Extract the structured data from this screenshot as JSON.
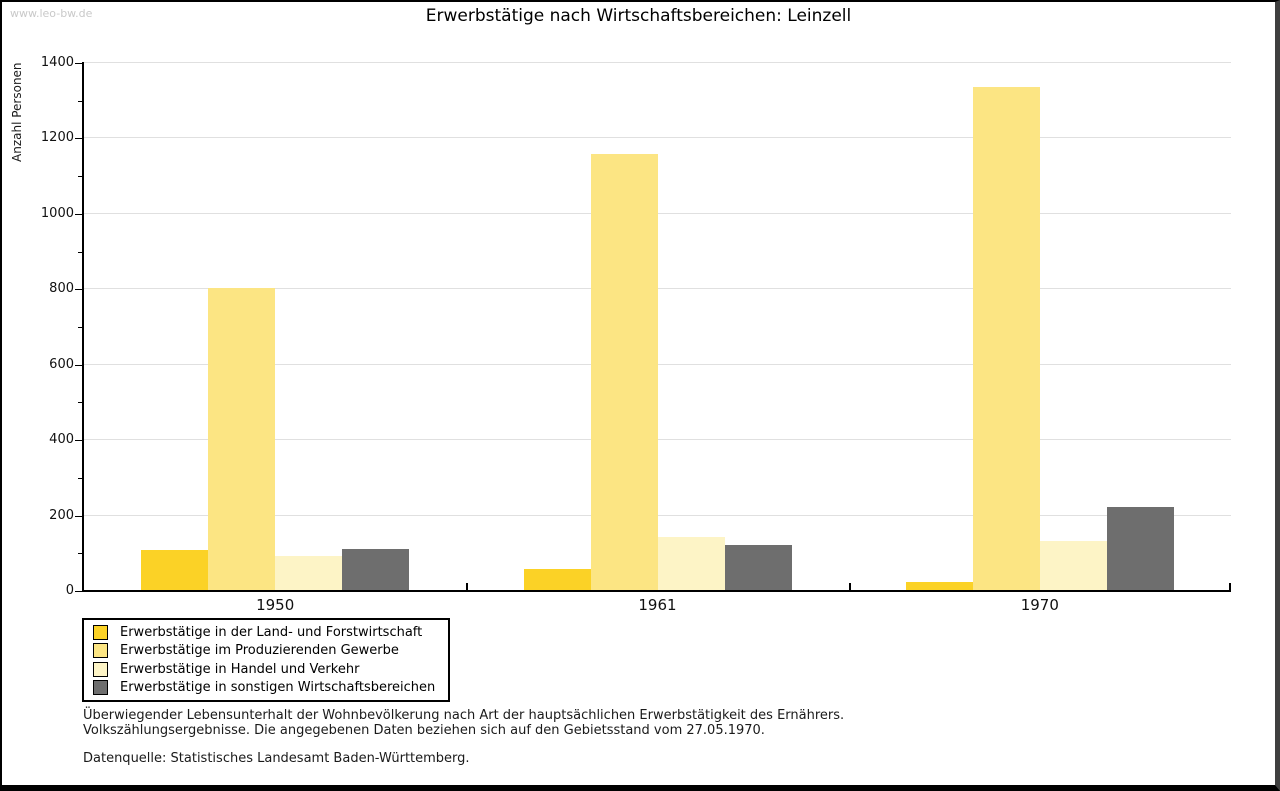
{
  "watermark": "www.leo-bw.de",
  "title": "Erwerbstätige nach Wirtschaftsbereichen: Leinzell",
  "chart_data": {
    "type": "bar",
    "title": "Erwerbstätige nach Wirtschaftsbereichen: Leinzell",
    "xlabel": "",
    "ylabel": "Anzahl Personen",
    "ylim": [
      0,
      1400
    ],
    "ytick_step": 200,
    "minor_tick_step": 100,
    "grid": true,
    "legend_position": "bottom-left",
    "categories": [
      "1950",
      "1961",
      "1970"
    ],
    "series": [
      {
        "name": "Erwerbstätige in der Land- und Forstwirtschaft",
        "color": "#FBD226",
        "values": [
          105,
          55,
          20
        ]
      },
      {
        "name": "Erwerbstätige im Produzierenden Gewerbe",
        "color": "#FCE583",
        "values": [
          800,
          1155,
          1335
        ]
      },
      {
        "name": "Erwerbstätige in Handel und Verkehr",
        "color": "#FDF4C6",
        "values": [
          90,
          140,
          130
        ]
      },
      {
        "name": "Erwerbstätige in sonstigen Wirtschaftsbereichen",
        "color": "#6E6E6E",
        "values": [
          110,
          120,
          220
        ]
      }
    ]
  },
  "footer": {
    "line1": "Überwiegender Lebensunterhalt der Wohnbevölkerung nach Art der hauptsächlichen Erwerbstätigkeit des Ernährers.",
    "line2": "Volkszählungsergebnisse. Die angegebenen Daten beziehen sich auf den Gebietsstand vom 27.05.1970.",
    "source": "Datenquelle: Statistisches Landesamt Baden-Württemberg."
  }
}
